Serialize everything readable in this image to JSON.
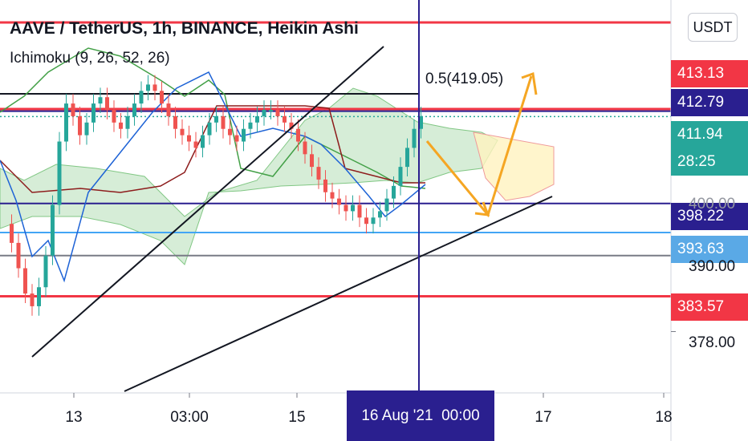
{
  "header": {
    "title": "AAVE / TetherUS, 1h, BINANCE, Heikin Ashi",
    "indicator": "Ichimoku (9, 26, 52, 26)",
    "currency": "USDT"
  },
  "chart_data": {
    "type": "candlestick",
    "symbol": "AAVE / TetherUS",
    "interval": "1h",
    "exchange": "BINANCE",
    "candle_style": "Heikin Ashi",
    "indicator": "Ichimoku (9, 26, 52, 26)",
    "ylim": [
      371,
      428
    ],
    "y_ticks": [
      378.0,
      390.0
    ],
    "x_ticks": [
      "13",
      "03:00",
      "15",
      "16 Aug '21  00:00",
      "17",
      "18"
    ],
    "current_price": 411.94,
    "countdown": "28:25",
    "horizontal_levels": [
      {
        "value": 426.8,
        "color": "#f23645"
      },
      {
        "value": 413.13,
        "color": "#f23645"
      },
      {
        "value": 412.79,
        "color": "#2a1f8f"
      },
      {
        "value": 398.22,
        "color": "#2a1f8f"
      },
      {
        "value": 393.63,
        "color": "#42a5f5"
      },
      {
        "value": 390.0,
        "color": "#787b86"
      },
      {
        "value": 383.57,
        "color": "#f23645"
      }
    ],
    "price_labels": [
      {
        "text": "413.13",
        "color": "#f23645"
      },
      {
        "text": "412.79",
        "color": "#2a1f8f"
      },
      {
        "text": "411.94",
        "color": "#26a69a"
      },
      {
        "text": "398.22",
        "color": "#2a1f8f"
      },
      {
        "text": "393.63",
        "color": "#5aa9e6"
      },
      {
        "text": "383.57",
        "color": "#f23645"
      }
    ],
    "fib_label": "0.5(419.05)",
    "crosshair_time": "16 Aug '21  00:00",
    "colors": {
      "up": "#26a69a",
      "down": "#ef5350",
      "kumo_bull": "#a5d6a7",
      "kumo_bear": "#fff3bf",
      "arrow": "#f5a623"
    }
  }
}
